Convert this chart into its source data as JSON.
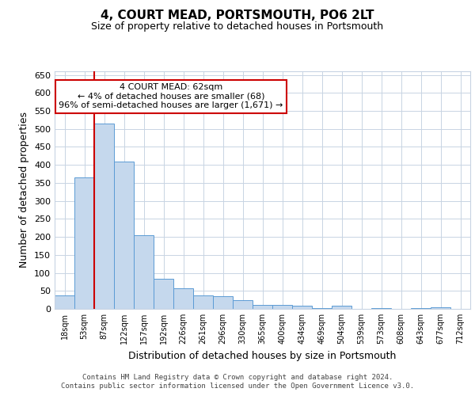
{
  "title": "4, COURT MEAD, PORTSMOUTH, PO6 2LT",
  "subtitle": "Size of property relative to detached houses in Portsmouth",
  "xlabel": "Distribution of detached houses by size in Portsmouth",
  "ylabel": "Number of detached properties",
  "categories": [
    "18sqm",
    "53sqm",
    "87sqm",
    "122sqm",
    "157sqm",
    "192sqm",
    "226sqm",
    "261sqm",
    "296sqm",
    "330sqm",
    "365sqm",
    "400sqm",
    "434sqm",
    "469sqm",
    "504sqm",
    "539sqm",
    "573sqm",
    "608sqm",
    "643sqm",
    "677sqm",
    "712sqm"
  ],
  "values": [
    37,
    365,
    515,
    410,
    205,
    83,
    58,
    37,
    35,
    25,
    12,
    10,
    8,
    2,
    8,
    0,
    2,
    0,
    2,
    5,
    0
  ],
  "bar_color": "#c5d8ed",
  "bar_edge_color": "#5b9bd5",
  "property_line_x": 1.5,
  "annotation_text": "4 COURT MEAD: 62sqm\n← 4% of detached houses are smaller (68)\n96% of semi-detached houses are larger (1,671) →",
  "annotation_box_color": "#ffffff",
  "annotation_box_edge": "#cc0000",
  "property_line_color": "#cc0000",
  "grid_color": "#c8d4e3",
  "background_color": "#ffffff",
  "ylim": [
    0,
    660
  ],
  "yticks": [
    0,
    50,
    100,
    150,
    200,
    250,
    300,
    350,
    400,
    450,
    500,
    550,
    600,
    650
  ],
  "footer_line1": "Contains HM Land Registry data © Crown copyright and database right 2024.",
  "footer_line2": "Contains public sector information licensed under the Open Government Licence v3.0.",
  "title_fontsize": 11,
  "subtitle_fontsize": 9,
  "axis_label_fontsize": 9,
  "tick_fontsize": 8,
  "annotation_fontsize": 8,
  "footer_fontsize": 6.5
}
